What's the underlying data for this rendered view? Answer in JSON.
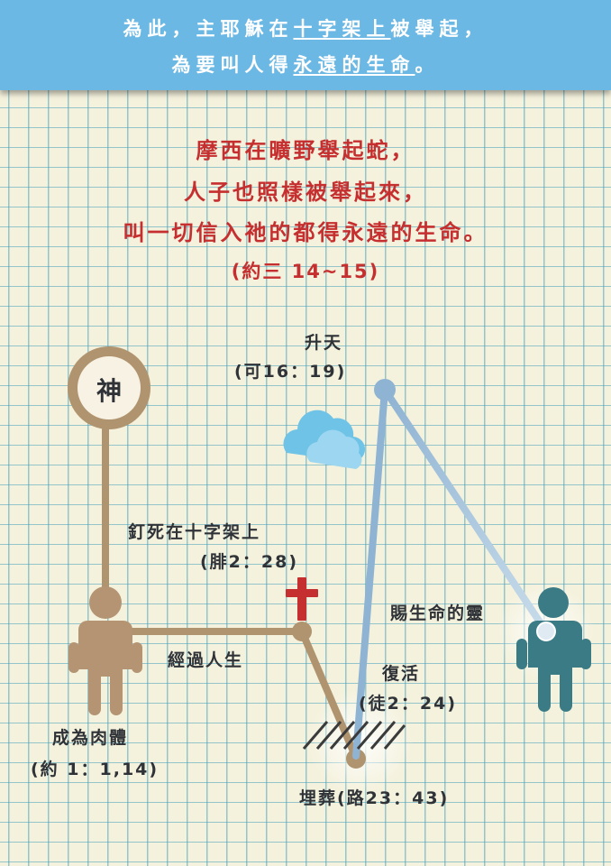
{
  "header": {
    "line1": {
      "a": "為此，主耶穌在",
      "b": "十字架上",
      "c": "被舉起，"
    },
    "line2": {
      "a": "為要叫人得",
      "b": "永遠的生命",
      "c": "。"
    }
  },
  "verse": {
    "line1": "摩西在曠野舉起蛇，",
    "line2": "人子也照樣被舉起來，",
    "line3": "叫一切信入祂的都得永遠的生命。",
    "reference": "(約三 14~15)"
  },
  "diagram": {
    "god_label": "神",
    "ascension": {
      "title": "升天",
      "ref": "(可16：19)"
    },
    "crucifixion": {
      "title": "釘死在十字架上",
      "ref": "(腓2：28)"
    },
    "life_passage": "經過人生",
    "incarnation": {
      "title": "成為肉體",
      "ref": "(約 1：1,14)"
    },
    "burial": "埋葬(路23：43)",
    "resurrection": {
      "title": "復活",
      "ref": "(徒2：24)"
    },
    "spirit_of_life": "賜生命的靈"
  },
  "colors": {
    "banner": "#6cb8e4",
    "verse_red": "#c62f2f",
    "path_tan": "#b0946f",
    "figure_tan": "#b49472",
    "figure_teal": "#3a7b86",
    "line_blue": "#8fb3d3",
    "grid": "#46a0be",
    "background": "#f4f1dc"
  }
}
